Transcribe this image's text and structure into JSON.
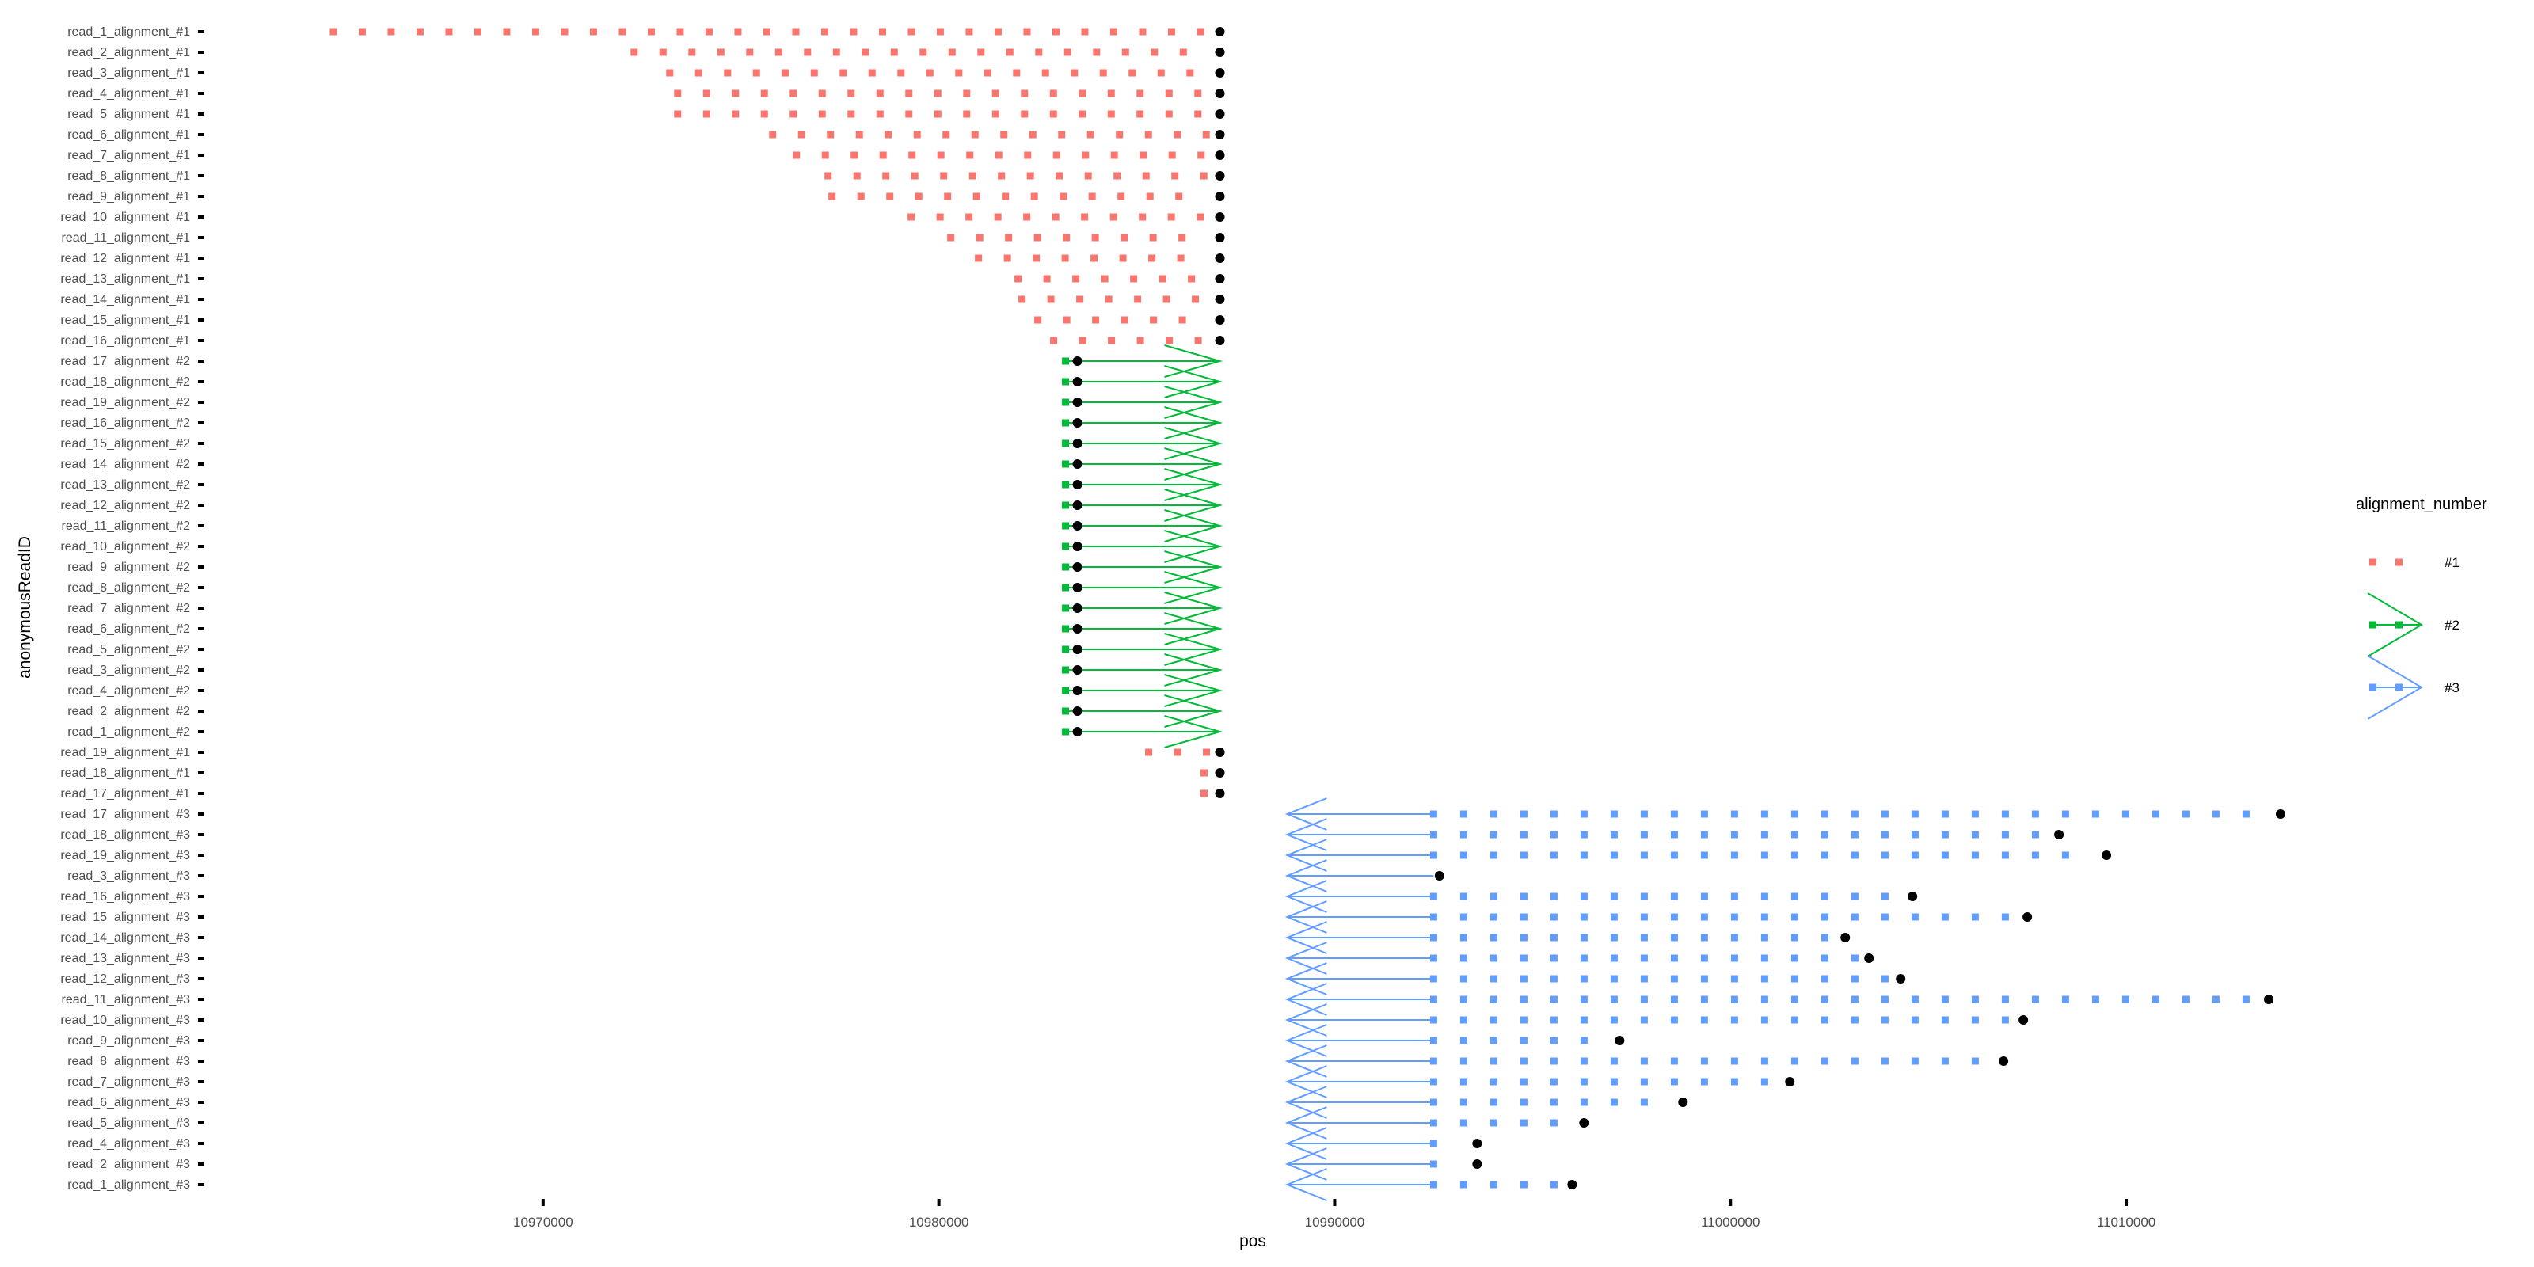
{
  "chart_data": {
    "type": "scatter",
    "xlabel": "pos",
    "ylabel": "anonymousReadID",
    "x_ticks": [
      10970000,
      10980000,
      10990000,
      11000000,
      11010000
    ],
    "x_tick_labels": [
      "10970000",
      "10980000",
      "10990000",
      "11000000",
      "11010000"
    ],
    "xlim": [
      10961500,
      11013600
    ],
    "rows": [
      "read_1_alignment_#1",
      "read_2_alignment_#1",
      "read_3_alignment_#1",
      "read_4_alignment_#1",
      "read_5_alignment_#1",
      "read_6_alignment_#1",
      "read_7_alignment_#1",
      "read_8_alignment_#1",
      "read_9_alignment_#1",
      "read_10_alignment_#1",
      "read_11_alignment_#1",
      "read_12_alignment_#1",
      "read_13_alignment_#1",
      "read_14_alignment_#1",
      "read_15_alignment_#1",
      "read_16_alignment_#1",
      "read_17_alignment_#2",
      "read_18_alignment_#2",
      "read_19_alignment_#2",
      "read_16_alignment_#2",
      "read_15_alignment_#2",
      "read_14_alignment_#2",
      "read_13_alignment_#2",
      "read_12_alignment_#2",
      "read_11_alignment_#2",
      "read_10_alignment_#2",
      "read_9_alignment_#2",
      "read_8_alignment_#2",
      "read_7_alignment_#2",
      "read_6_alignment_#2",
      "read_5_alignment_#2",
      "read_3_alignment_#2",
      "read_4_alignment_#2",
      "read_2_alignment_#2",
      "read_1_alignment_#2",
      "read_19_alignment_#1",
      "read_18_alignment_#1",
      "read_17_alignment_#1",
      "read_17_alignment_#3",
      "read_18_alignment_#3",
      "read_19_alignment_#3",
      "read_3_alignment_#3",
      "read_16_alignment_#3",
      "read_15_alignment_#3",
      "read_14_alignment_#3",
      "read_13_alignment_#3",
      "read_12_alignment_#3",
      "read_11_alignment_#3",
      "read_10_alignment_#3",
      "read_9_alignment_#3",
      "read_8_alignment_#3",
      "read_7_alignment_#3",
      "read_6_alignment_#3",
      "read_5_alignment_#3",
      "read_4_alignment_#3",
      "read_2_alignment_#3",
      "read_1_alignment_#3"
    ],
    "legend": {
      "title": "alignment_number",
      "placement": "right",
      "entries": [
        {
          "label": "#1",
          "color": "#F8766D"
        },
        {
          "label": "#2",
          "color": "#00BA38"
        },
        {
          "label": "#3",
          "color": "#619CFF"
        }
      ]
    },
    "series": [
      {
        "name": "#1",
        "color": "#F8766D",
        "reads": [
          {
            "row": "read_1_alignment_#1",
            "start": 10964700,
            "end": 10987100
          },
          {
            "row": "read_2_alignment_#1",
            "start": 10972300,
            "end": 10987100
          },
          {
            "row": "read_3_alignment_#1",
            "start": 10973200,
            "end": 10987100
          },
          {
            "row": "read_4_alignment_#1",
            "start": 10973400,
            "end": 10987100
          },
          {
            "row": "read_5_alignment_#1",
            "start": 10973400,
            "end": 10987100
          },
          {
            "row": "read_6_alignment_#1",
            "start": 10975800,
            "end": 10987100
          },
          {
            "row": "read_7_alignment_#1",
            "start": 10976400,
            "end": 10987100
          },
          {
            "row": "read_8_alignment_#1",
            "start": 10977200,
            "end": 10987100
          },
          {
            "row": "read_9_alignment_#1",
            "start": 10977300,
            "end": 10987100
          },
          {
            "row": "read_10_alignment_#1",
            "start": 10979300,
            "end": 10987100
          },
          {
            "row": "read_11_alignment_#1",
            "start": 10980300,
            "end": 10987100
          },
          {
            "row": "read_12_alignment_#1",
            "start": 10981000,
            "end": 10987100
          },
          {
            "row": "read_13_alignment_#1",
            "start": 10982000,
            "end": 10987100
          },
          {
            "row": "read_14_alignment_#1",
            "start": 10982100,
            "end": 10987100
          },
          {
            "row": "read_15_alignment_#1",
            "start": 10982500,
            "end": 10987100
          },
          {
            "row": "read_16_alignment_#1",
            "start": 10982900,
            "end": 10987100
          },
          {
            "row": "read_19_alignment_#1",
            "start": 10985300,
            "end": 10987100
          },
          {
            "row": "read_18_alignment_#1",
            "start": 10986700,
            "end": 10987100
          },
          {
            "row": "read_17_alignment_#1",
            "start": 10986700,
            "end": 10987100
          }
        ]
      },
      {
        "name": "#2",
        "color": "#00BA38",
        "reads": [
          {
            "row": "read_17_alignment_#2",
            "start": 10983200,
            "end": 10983500
          },
          {
            "row": "read_18_alignment_#2",
            "start": 10983200,
            "end": 10983500
          },
          {
            "row": "read_19_alignment_#2",
            "start": 10983200,
            "end": 10983500
          },
          {
            "row": "read_16_alignment_#2",
            "start": 10983200,
            "end": 10983500
          },
          {
            "row": "read_15_alignment_#2",
            "start": 10983200,
            "end": 10983500
          },
          {
            "row": "read_14_alignment_#2",
            "start": 10983200,
            "end": 10983500
          },
          {
            "row": "read_13_alignment_#2",
            "start": 10983200,
            "end": 10983500
          },
          {
            "row": "read_12_alignment_#2",
            "start": 10983200,
            "end": 10983500
          },
          {
            "row": "read_11_alignment_#2",
            "start": 10983200,
            "end": 10983500
          },
          {
            "row": "read_10_alignment_#2",
            "start": 10983200,
            "end": 10983500
          },
          {
            "row": "read_9_alignment_#2",
            "start": 10983200,
            "end": 10983500
          },
          {
            "row": "read_8_alignment_#2",
            "start": 10983200,
            "end": 10983500
          },
          {
            "row": "read_7_alignment_#2",
            "start": 10983200,
            "end": 10983500
          },
          {
            "row": "read_6_alignment_#2",
            "start": 10983200,
            "end": 10983500
          },
          {
            "row": "read_5_alignment_#2",
            "start": 10983200,
            "end": 10983500
          },
          {
            "row": "read_3_alignment_#2",
            "start": 10983200,
            "end": 10983500
          },
          {
            "row": "read_4_alignment_#2",
            "start": 10983200,
            "end": 10983500
          },
          {
            "row": "read_2_alignment_#2",
            "start": 10983200,
            "end": 10983500
          },
          {
            "row": "read_1_alignment_#2",
            "start": 10983200,
            "end": 10983500
          }
        ]
      },
      {
        "name": "#3",
        "color": "#619CFF",
        "reads": [
          {
            "row": "read_17_alignment_#3",
            "start": 10992500,
            "end": 11013900
          },
          {
            "row": "read_18_alignment_#3",
            "start": 10992500,
            "end": 11008300
          },
          {
            "row": "read_19_alignment_#3",
            "start": 10992500,
            "end": 11009500
          },
          {
            "row": "read_3_alignment_#3",
            "start": 10992500,
            "end": 10992650
          },
          {
            "row": "read_16_alignment_#3",
            "start": 10992500,
            "end": 11004600
          },
          {
            "row": "read_15_alignment_#3",
            "start": 10992500,
            "end": 11007500
          },
          {
            "row": "read_14_alignment_#3",
            "start": 10992500,
            "end": 11002900
          },
          {
            "row": "read_13_alignment_#3",
            "start": 10992500,
            "end": 11003500
          },
          {
            "row": "read_12_alignment_#3",
            "start": 10992500,
            "end": 11004300
          },
          {
            "row": "read_11_alignment_#3",
            "start": 10992500,
            "end": 11013600
          },
          {
            "row": "read_10_alignment_#3",
            "start": 10992500,
            "end": 11007400
          },
          {
            "row": "read_9_alignment_#3",
            "start": 10992500,
            "end": 10997200
          },
          {
            "row": "read_8_alignment_#3",
            "start": 10992500,
            "end": 11006900
          },
          {
            "row": "read_7_alignment_#3",
            "start": 10992500,
            "end": 11001500
          },
          {
            "row": "read_6_alignment_#3",
            "start": 10992500,
            "end": 10998800
          },
          {
            "row": "read_5_alignment_#3",
            "start": 10992500,
            "end": 10996300
          },
          {
            "row": "read_4_alignment_#3",
            "start": 10992500,
            "end": 10993600
          },
          {
            "row": "read_2_alignment_#3",
            "start": 10992500,
            "end": 10993600
          },
          {
            "row": "read_1_alignment_#3",
            "start": 10992500,
            "end": 10996000
          }
        ]
      }
    ]
  }
}
